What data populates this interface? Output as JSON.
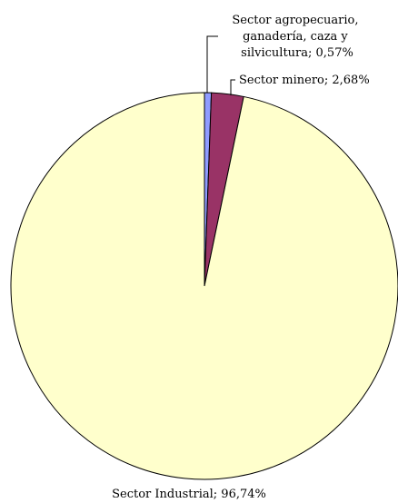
{
  "chart_data": {
    "type": "pie",
    "slices": [
      {
        "label_lines": [
          "Sector agropecuario,",
          "ganadería, caza y",
          "silvicultura; 0,57%"
        ],
        "value": 0.57,
        "color": "#8f9cff"
      },
      {
        "label_lines": [
          "Sector minero; 2,68%"
        ],
        "value": 2.68,
        "color": "#993366"
      },
      {
        "label_lines": [
          "Sector Industrial; 96,74%"
        ],
        "value": 96.74,
        "color": "#ffffcc"
      }
    ]
  }
}
